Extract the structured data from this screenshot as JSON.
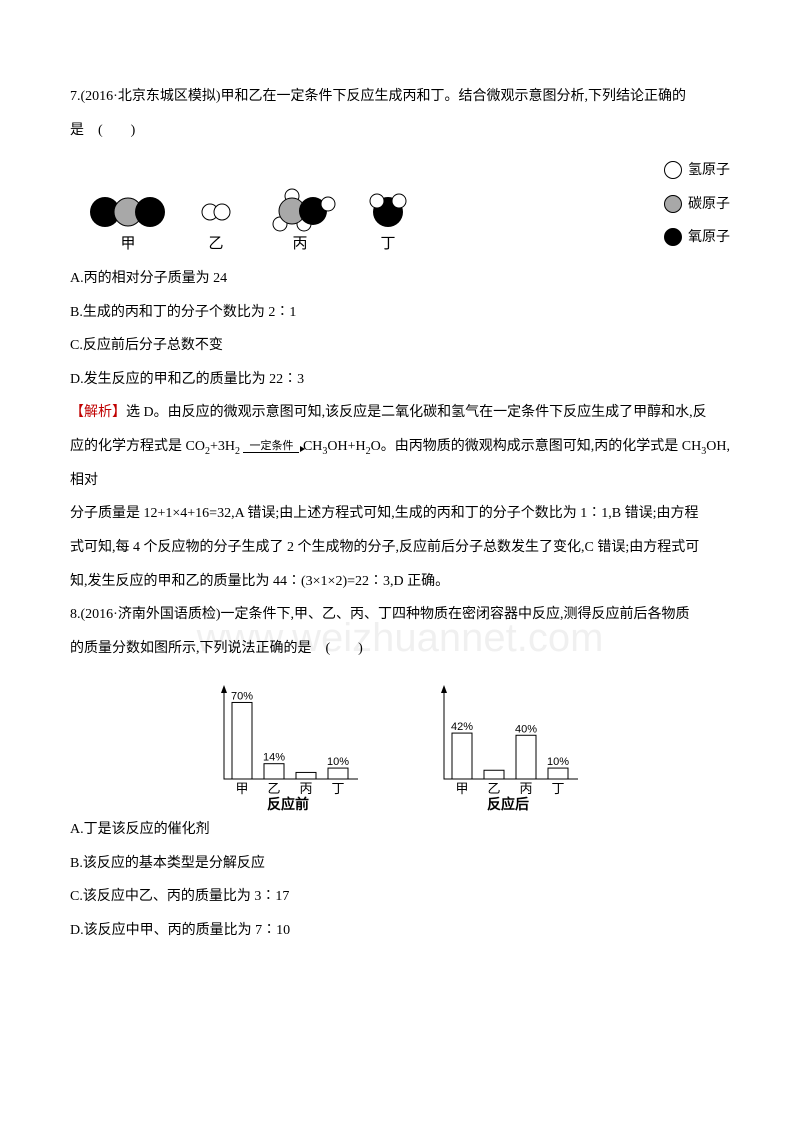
{
  "q7": {
    "stem_a": "7.(2016·北京东城区模拟)甲和乙在一定条件下反应生成丙和丁。结合微观示意图分析,下列结论正确的",
    "stem_b": "是　(　　)",
    "legend": {
      "h": "氢原子",
      "c": "碳原子",
      "o": "氧原子"
    },
    "mol_labels": {
      "a": "甲",
      "b": "乙",
      "c": "丙",
      "d": "丁"
    },
    "opt_a": "A.丙的相对分子质量为 24",
    "opt_b": "B.生成的丙和丁的分子个数比为 2∶1",
    "opt_c": "C.反应前后分子总数不变",
    "opt_d": "D.发生反应的甲和乙的质量比为 22∶3",
    "ans_tag": "【解析】",
    "ans_1": "选 D。由反应的微观示意图可知,该反应是二氧化碳和氢气在一定条件下反应生成了甲醇和水,反",
    "ans_2a": "应的化学方程式是 CO",
    "ans_2b": "+3H",
    "ans_cond": "一定条件",
    "ans_2c": "CH",
    "ans_2d": "OH+H",
    "ans_2e": "O。由丙物质的微观构成示意图可知,丙的化学式是 CH",
    "ans_2f": "OH,相对",
    "ans_3": "分子质量是 12+1×4+16=32,A 错误;由上述方程式可知,生成的丙和丁的分子个数比为 1∶1,B 错误;由方程",
    "ans_4": "式可知,每 4 个反应物的分子生成了 2 个生成物的分子,反应前后分子总数发生了变化,C 错误;由方程式可",
    "ans_5": "知,发生反应的甲和乙的质量比为 44∶(3×1×2)=22∶3,D 正确。"
  },
  "q8": {
    "stem_a": "8.(2016·济南外国语质检)一定条件下,甲、乙、丙、丁四种物质在密闭容器中反应,测得反应前后各物质",
    "stem_b": "的质量分数如图所示,下列说法正确的是　(　　)",
    "chart_before": {
      "title": "反应前",
      "labels": [
        "甲",
        "乙",
        "丙",
        "丁"
      ],
      "values": [
        70,
        14,
        6,
        10
      ],
      "value_labels": [
        "70%",
        "14%",
        "",
        "10%"
      ],
      "ymax": 75
    },
    "chart_after": {
      "title": "反应后",
      "labels": [
        "甲",
        "乙",
        "丙",
        "丁"
      ],
      "values": [
        42,
        8,
        40,
        10
      ],
      "value_labels": [
        "42%",
        "",
        "40%",
        "10%"
      ],
      "ymax": 75
    },
    "opt_a": "A.丁是该反应的催化剂",
    "opt_b": "B.该反应的基本类型是分解反应",
    "opt_c": "C.该反应中乙、丙的质量比为 3∶17",
    "opt_d": "D.该反应中甲、丙的质量比为 7∶10"
  },
  "style": {
    "atom_h": {
      "fill": "#ffffff",
      "stroke": "#000"
    },
    "atom_c": {
      "fill": "#a8a8a8",
      "stroke": "#000"
    },
    "atom_o": {
      "fill": "#000000",
      "stroke": "#000"
    },
    "bar_fill": "#ffffff",
    "bar_stroke": "#000000",
    "axis_color": "#000000",
    "font_label": "SimHei, sans-serif"
  }
}
